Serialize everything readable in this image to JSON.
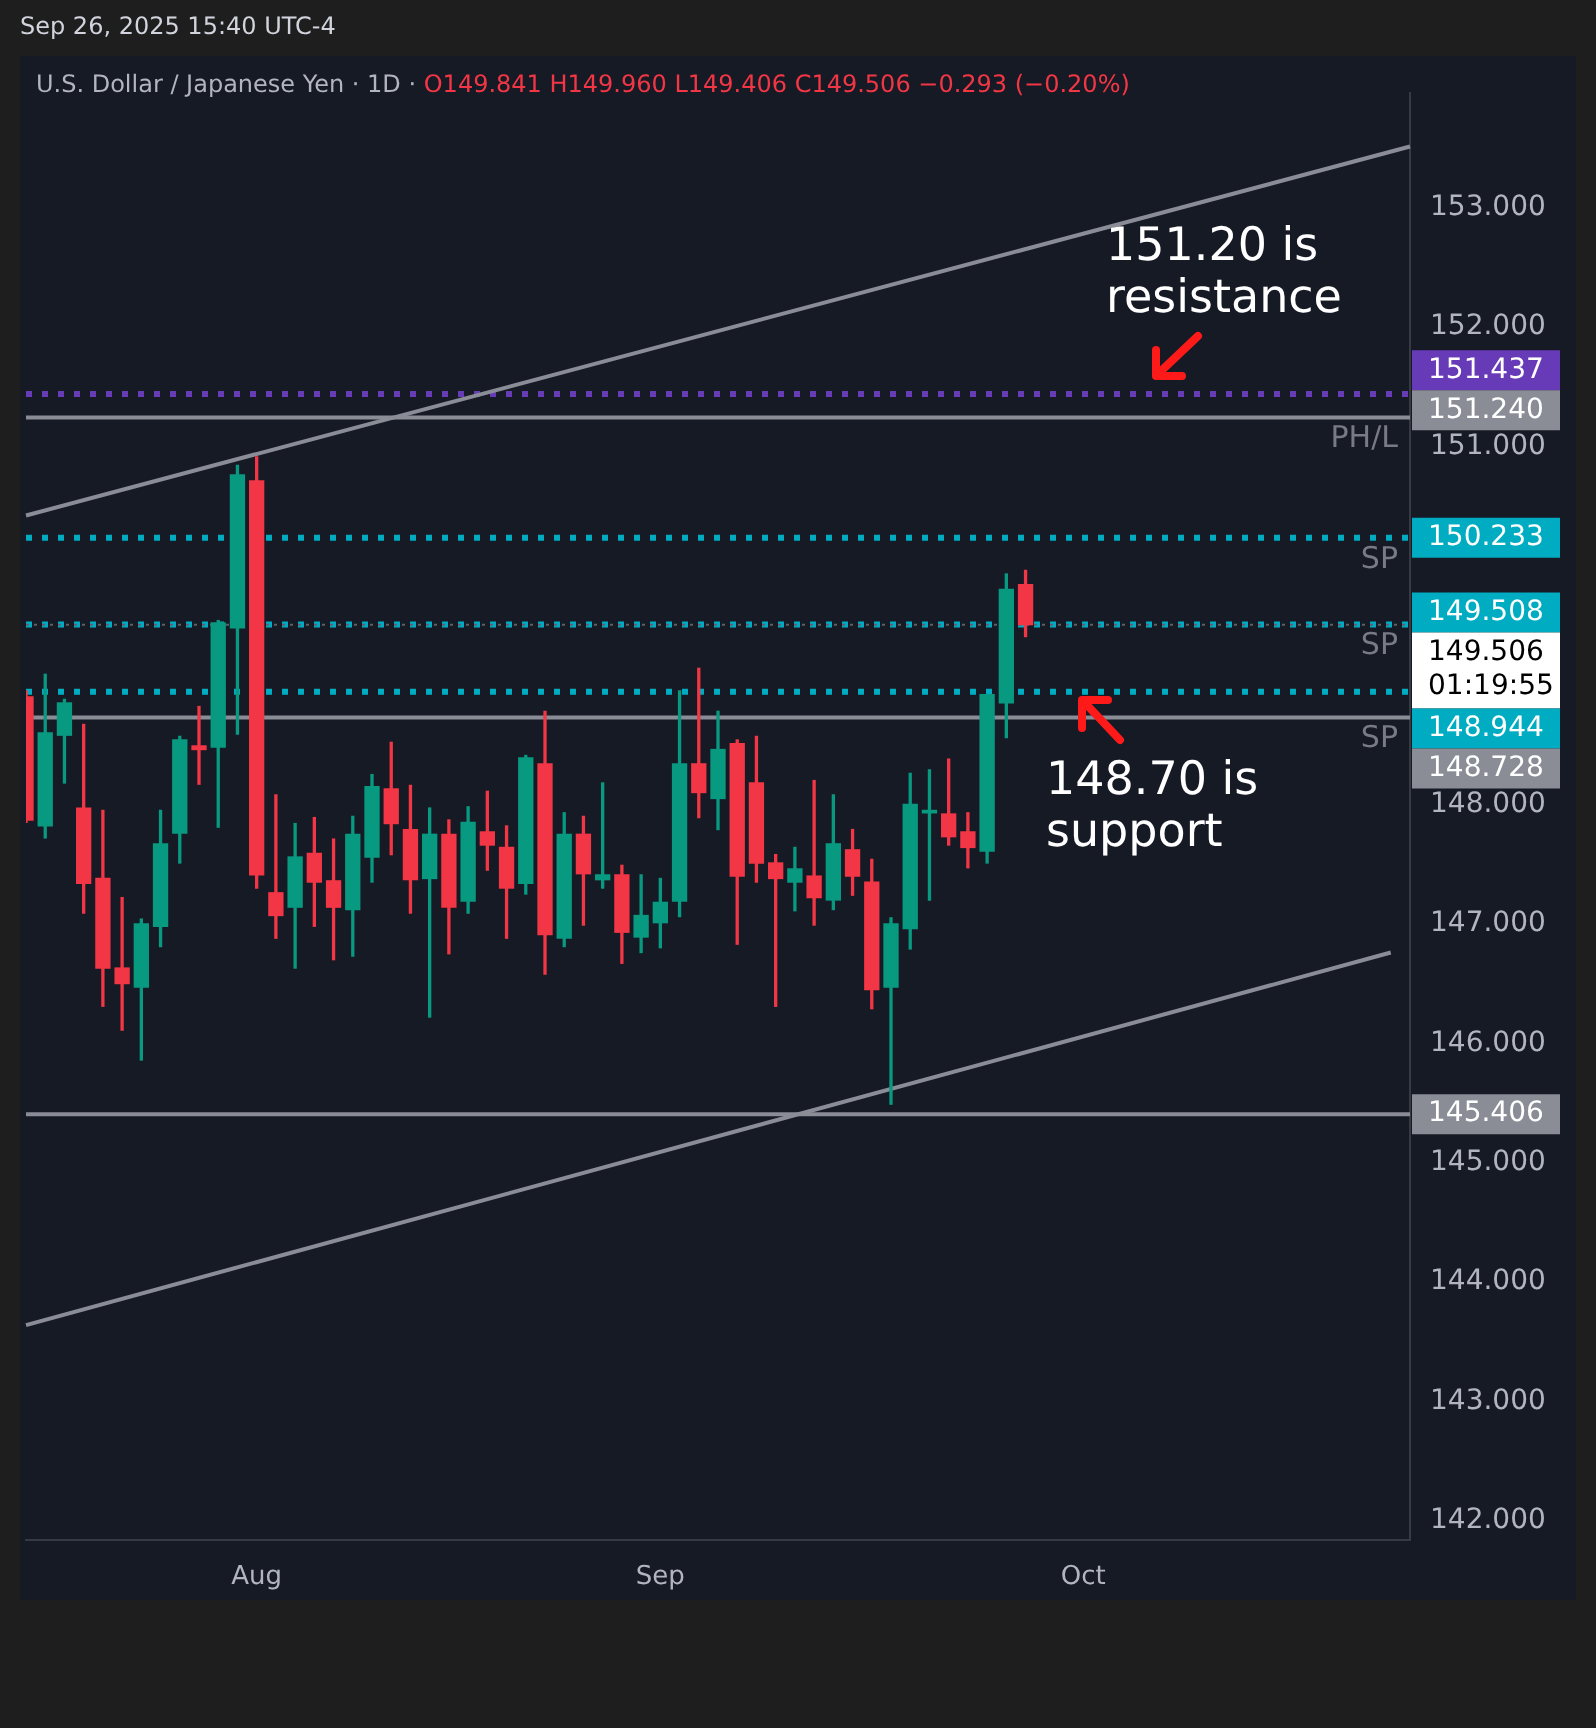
{
  "chart_data": {
    "type": "candlestick",
    "title": "U.S. Dollar / Japanese Yen · 1D ·",
    "subtitle": "O149.841 H149.960 L149.406 C149.506 −0.293 (−0.20%)",
    "annotations": [
      "Sep 26, 2025 15:40 UTC-4",
      "151.20 is resistance",
      "148.70 is support",
      "01:19:55",
      "151.437",
      "151.240",
      "150.233",
      "149.508",
      "149.506",
      "148.944",
      "148.728",
      "145.406"
    ],
    "categories": [
      null,
      null,
      null,
      null,
      null,
      null,
      null,
      null,
      null,
      null,
      null,
      null,
      "Aug",
      null,
      null,
      null,
      null,
      null,
      null,
      null,
      null,
      null,
      null,
      null,
      null,
      null,
      null,
      null,
      null,
      null,
      null,
      null,
      null,
      "Sep",
      null,
      null,
      null,
      null,
      null,
      null,
      null,
      null,
      null,
      null,
      null,
      null,
      null,
      null,
      null,
      null,
      null,
      null,
      null,
      null,
      null,
      "Oct",
      null,
      null,
      null,
      null,
      null,
      null,
      null,
      null,
      null,
      null,
      null,
      null,
      null,
      null,
      null,
      null,
      null
    ],
    "ohlc": [
      [
        148.9,
        148.95,
        147.85,
        147.87
      ],
      [
        147.82,
        149.09,
        147.72,
        148.6
      ],
      [
        148.58,
        148.88,
        148.18,
        148.85
      ],
      [
        147.97,
        148.67,
        147.09,
        147.34
      ],
      [
        147.38,
        147.95,
        146.31,
        146.63
      ],
      [
        146.63,
        147.22,
        146.11,
        146.5
      ],
      [
        146.47,
        147.04,
        145.86,
        147.0
      ],
      [
        146.98,
        147.95,
        146.81,
        147.67
      ],
      [
        147.76,
        148.57,
        147.51,
        148.54
      ],
      [
        148.49,
        148.82,
        148.17,
        148.46
      ],
      [
        148.48,
        149.54,
        147.81,
        149.52
      ],
      [
        149.48,
        150.84,
        148.59,
        150.76
      ],
      [
        150.71,
        150.91,
        147.3,
        147.41
      ],
      [
        147.26,
        148.08,
        146.88,
        147.07
      ],
      [
        147.14,
        147.84,
        146.63,
        147.56
      ],
      [
        147.59,
        147.89,
        146.98,
        147.35
      ],
      [
        147.36,
        147.71,
        146.7,
        147.14
      ],
      [
        147.12,
        147.9,
        146.73,
        147.75
      ],
      [
        147.56,
        148.25,
        147.35,
        148.15
      ],
      [
        148.13,
        148.52,
        147.58,
        147.84
      ],
      [
        147.79,
        148.16,
        147.09,
        147.37
      ],
      [
        147.38,
        147.97,
        146.22,
        147.75
      ],
      [
        147.75,
        147.87,
        146.75,
        147.14
      ],
      [
        147.19,
        147.98,
        147.09,
        147.85
      ],
      [
        147.77,
        148.11,
        147.45,
        147.66
      ],
      [
        147.64,
        147.82,
        146.88,
        147.3
      ],
      [
        147.34,
        148.41,
        147.25,
        148.39
      ],
      [
        148.34,
        148.78,
        146.58,
        146.91
      ],
      [
        146.88,
        147.93,
        146.81,
        147.75
      ],
      [
        147.75,
        147.9,
        146.99,
        147.42
      ],
      [
        147.37,
        148.18,
        147.3,
        147.41
      ],
      [
        147.41,
        147.49,
        146.67,
        146.93
      ],
      [
        146.89,
        147.41,
        146.76,
        147.07
      ],
      [
        147.01,
        147.38,
        146.8,
        147.18
      ],
      [
        147.19,
        148.95,
        147.06,
        148.34
      ],
      [
        148.34,
        149.14,
        147.89,
        148.1
      ],
      [
        148.05,
        148.78,
        147.79,
        148.46
      ],
      [
        148.51,
        148.54,
        146.83,
        147.4
      ],
      [
        148.18,
        148.57,
        147.35,
        147.51
      ],
      [
        147.51,
        147.58,
        146.31,
        147.38
      ],
      [
        147.35,
        147.64,
        147.11,
        147.46
      ],
      [
        147.4,
        148.2,
        146.99,
        147.22
      ],
      [
        147.2,
        148.08,
        147.12,
        147.67
      ],
      [
        147.62,
        147.79,
        147.24,
        147.4
      ],
      [
        147.35,
        147.54,
        146.29,
        146.45
      ],
      [
        146.47,
        147.05,
        145.49,
        147.0
      ],
      [
        146.96,
        148.26,
        146.79,
        148.0
      ],
      [
        147.93,
        148.29,
        147.2,
        147.95
      ],
      [
        147.92,
        148.38,
        147.66,
        147.73
      ],
      [
        147.77,
        147.93,
        147.47,
        147.64
      ],
      [
        147.61,
        148.92,
        147.51,
        148.92
      ],
      [
        148.85,
        149.93,
        148.56,
        149.8
      ],
      [
        149.841,
        149.96,
        149.406,
        149.506
      ],
      null,
      null,
      null,
      null,
      null,
      null,
      null,
      null,
      null,
      null,
      null,
      null,
      null,
      null,
      null,
      null,
      null,
      null,
      null,
      null
    ],
    "series": [
      {
        "type": "line",
        "color": "#8a8d96",
        "values": [
          150.42,
          null,
          null,
          null,
          null,
          null,
          null,
          null,
          null,
          null,
          null,
          null,
          null,
          null,
          null,
          null,
          null,
          null,
          null,
          null,
          null,
          null,
          null,
          null,
          null,
          null,
          null,
          null,
          null,
          null,
          null,
          null,
          null,
          null,
          null,
          null,
          null,
          null,
          null,
          null,
          null,
          null,
          null,
          null,
          null,
          null,
          null,
          null,
          null,
          null,
          null,
          null,
          null,
          null,
          null,
          null,
          null,
          null,
          null,
          null,
          null,
          null,
          null,
          null,
          null,
          null,
          null,
          null,
          null,
          null,
          null,
          null,
          153.51
        ]
      },
      {
        "type": "line",
        "color": "#8a8d96",
        "values": [
          143.64,
          null,
          null,
          null,
          null,
          null,
          null,
          null,
          null,
          null,
          null,
          null,
          null,
          null,
          null,
          null,
          null,
          null,
          null,
          null,
          null,
          null,
          null,
          null,
          null,
          null,
          null,
          null,
          null,
          null,
          null,
          null,
          null,
          null,
          null,
          null,
          null,
          null,
          null,
          null,
          null,
          null,
          null,
          null,
          null,
          null,
          null,
          null,
          null,
          null,
          null,
          null,
          null,
          null,
          null,
          null,
          null,
          null,
          null,
          null,
          null,
          null,
          null,
          null,
          null,
          null,
          null,
          null,
          null,
          null,
          null,
          146.76,
          null
        ]
      }
    ],
    "ylim": [
      141.84,
      153.96
    ],
    "yticks": [
      {
        "value": 142,
        "label": "142.000"
      },
      {
        "value": 143,
        "label": "143.000"
      },
      {
        "value": 144,
        "label": "144.000"
      },
      {
        "value": 145,
        "label": "145.000"
      },
      {
        "value": 146,
        "label": "146.000"
      },
      {
        "value": 147,
        "label": "147.000"
      },
      {
        "value": 148,
        "label": "148.000"
      },
      {
        "value": 151,
        "label": "151.000"
      },
      {
        "value": 152,
        "label": "152.000"
      },
      {
        "value": 153,
        "label": "153.000"
      }
    ],
    "ref_lines": [
      {
        "axis": "y",
        "value": 151.437,
        "color": "#673ab7",
        "line_style": "dotted"
      },
      {
        "axis": "y",
        "value": 151.24,
        "label": "PH/L",
        "color": "#8a8d96",
        "line_style": "solid"
      },
      {
        "axis": "y",
        "value": 150.233,
        "label": "SP",
        "color": "#00acc1",
        "line_style": "dotted"
      },
      {
        "axis": "y",
        "value": 149.508,
        "label": "SP",
        "color": "#00acc1",
        "line_style": "dotted"
      },
      {
        "axis": "y",
        "value": 149.506,
        "line_style": "dotted"
      },
      {
        "axis": "y",
        "value": 148.944,
        "color": "#00acc1",
        "line_style": "dotted"
      },
      {
        "axis": "y",
        "value": 148.728,
        "label": "SP",
        "color": "#8a8d96",
        "line_style": "solid"
      },
      {
        "axis": "y",
        "value": 145.406,
        "color": "#8a8d96",
        "line_style": "solid"
      }
    ],
    "grid": false,
    "legend": false
  }
}
